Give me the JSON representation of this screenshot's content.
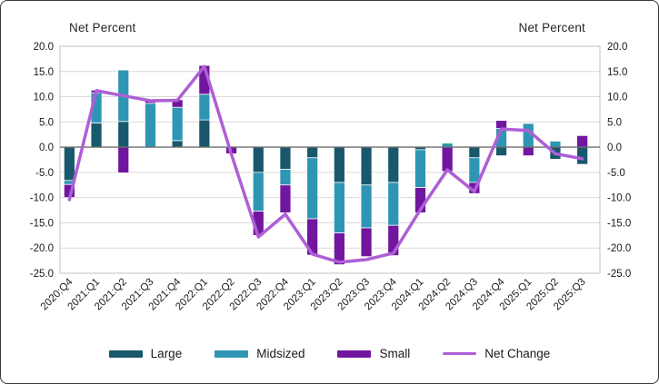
{
  "frame": {
    "left_axis_title": "Net Percent",
    "right_axis_title": "Net Percent"
  },
  "chart_data": {
    "type": "bar",
    "subtype": "stacked-bars-with-line-overlay",
    "title": "",
    "xlabel": "",
    "ylabel_left": "Net Percent",
    "ylabel_right": "Net Percent",
    "ylim": [
      -25,
      20
    ],
    "ytick_step": 5,
    "ytick_format": "one-decimal",
    "grid": true,
    "legend_position": "bottom",
    "categories": [
      "2020:Q4",
      "2021:Q1",
      "2021:Q2",
      "2021:Q3",
      "2021:Q4",
      "2022:Q1",
      "2022:Q2",
      "2022:Q3",
      "2022:Q4",
      "2023:Q1",
      "2023:Q2",
      "2023:Q3",
      "2023:Q4",
      "2024:Q1",
      "2024:Q2",
      "2024:Q3",
      "2024:Q4",
      "2025:Q1",
      "2025:Q2",
      "2025:Q3"
    ],
    "series": [
      {
        "name": "Large",
        "kind": "bar",
        "color": "#19586C",
        "values": [
          -6.6,
          4.8,
          5.1,
          0.0,
          1.3,
          5.4,
          0.0,
          -5.0,
          -4.4,
          -2.1,
          -7.0,
          -7.5,
          -7.0,
          -0.5,
          0.0,
          -2.1,
          -1.7,
          0.0,
          -2.4,
          -3.4
        ]
      },
      {
        "name": "Midsized",
        "kind": "bar",
        "color": "#2E96B4",
        "values": [
          -0.8,
          6.0,
          10.2,
          8.7,
          6.6,
          5.1,
          0.0,
          -7.7,
          -3.1,
          -12.1,
          -10.0,
          -8.5,
          -8.5,
          -7.5,
          0.8,
          -4.9,
          3.7,
          4.7,
          1.2,
          0.0
        ]
      },
      {
        "name": "Small",
        "kind": "bar",
        "color": "#71169E",
        "values": [
          -2.6,
          0.5,
          -5.1,
          0.7,
          1.5,
          5.7,
          -1.3,
          -4.8,
          -5.5,
          -7.2,
          -6.3,
          -5.7,
          -6.0,
          -5.0,
          -4.8,
          -2.2,
          1.6,
          -1.7,
          0.0,
          2.3
        ]
      },
      {
        "name": "Net Change",
        "kind": "line",
        "color": "#AE5FD5",
        "values": [
          -10.4,
          11.2,
          10.2,
          9.2,
          9.3,
          16.0,
          -1.4,
          -17.8,
          -13.3,
          -21.2,
          -22.8,
          -22.3,
          -21.0,
          -12.4,
          -4.5,
          -8.8,
          3.6,
          3.3,
          -1.3,
          -2.3
        ]
      }
    ],
    "colors": {
      "gridline": "#D9D9D9",
      "zero_line": "#6E6E6E",
      "plot_border": "#C0C0C0",
      "tick_text": "#1a1a1a"
    }
  }
}
